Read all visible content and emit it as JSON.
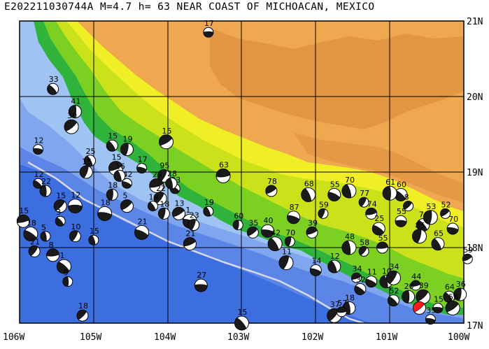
{
  "title": "E202211030744A M=4.7 h= 63 NEAR COAST OF MICHOACAN, MEXICO",
  "axes": {
    "lon_labels": [
      "106W",
      "105W",
      "104W",
      "103W",
      "102W",
      "101W",
      "100W"
    ],
    "lat_labels": [
      "21N",
      "20N",
      "19N",
      "18N",
      "17N"
    ]
  },
  "colors": {
    "ocean_deep": "#3d6ee0",
    "ocean_mid": "#5b86e8",
    "ocean_shelf": "#7fa6ee",
    "coast_shelf": "#9fc3f2",
    "lowland_green": "#2fb33a",
    "plain_green": "#7cd021",
    "yellowgreen": "#cbe21a",
    "yellow": "#f0ee24",
    "highland_orange": "#f0a850",
    "plateau_brown": "#dd9040",
    "trench_line": "#d9d9e6",
    "target_event": "#ff1a1a"
  },
  "target_event": {
    "depth_label": "63",
    "lon": 100.6,
    "lat": 17.2
  },
  "events": [
    {
      "lon": 103.45,
      "lat": 20.85,
      "d": "17"
    },
    {
      "lon": 105.55,
      "lat": 20.1,
      "d": "33"
    },
    {
      "lon": 105.25,
      "lat": 19.8,
      "d": "41"
    },
    {
      "lon": 105.3,
      "lat": 19.6,
      "d": "30"
    },
    {
      "lon": 105.75,
      "lat": 19.3,
      "d": "12"
    },
    {
      "lon": 104.75,
      "lat": 19.35,
      "d": "15"
    },
    {
      "lon": 104.55,
      "lat": 19.3,
      "d": "19"
    },
    {
      "lon": 104.02,
      "lat": 19.4,
      "d": "15"
    },
    {
      "lon": 104.35,
      "lat": 19.05,
      "d": "17"
    },
    {
      "lon": 105.05,
      "lat": 19.15,
      "d": "25"
    },
    {
      "lon": 105.1,
      "lat": 19.0,
      "d": "15"
    },
    {
      "lon": 104.7,
      "lat": 19.05,
      "d": "15"
    },
    {
      "lon": 104.55,
      "lat": 18.85,
      "d": "42"
    },
    {
      "lon": 104.65,
      "lat": 18.95,
      "d": "16"
    },
    {
      "lon": 104.05,
      "lat": 18.95,
      "d": "95"
    },
    {
      "lon": 104.15,
      "lat": 18.82,
      "d": "29"
    },
    {
      "lon": 103.9,
      "lat": 18.78,
      "d": "23"
    },
    {
      "lon": 103.95,
      "lat": 18.85,
      "d": "28"
    },
    {
      "lon": 104.1,
      "lat": 18.65,
      "d": "22"
    },
    {
      "lon": 103.25,
      "lat": 18.95,
      "d": "63"
    },
    {
      "lon": 105.75,
      "lat": 18.85,
      "d": "12"
    },
    {
      "lon": 105.65,
      "lat": 18.75,
      "d": "22"
    },
    {
      "lon": 105.45,
      "lat": 18.55,
      "d": "15"
    },
    {
      "lon": 105.25,
      "lat": 18.55,
      "d": "12"
    },
    {
      "lon": 105.45,
      "lat": 18.35,
      "d": "3"
    },
    {
      "lon": 104.75,
      "lat": 18.7,
      "d": "18"
    },
    {
      "lon": 104.55,
      "lat": 18.55,
      "d": "5"
    },
    {
      "lon": 104.85,
      "lat": 18.45,
      "d": "18"
    },
    {
      "lon": 104.2,
      "lat": 18.55,
      "d": "19"
    },
    {
      "lon": 104.05,
      "lat": 18.45,
      "d": "18"
    },
    {
      "lon": 103.85,
      "lat": 18.45,
      "d": "13"
    },
    {
      "lon": 103.7,
      "lat": 18.35,
      "d": "1"
    },
    {
      "lon": 103.45,
      "lat": 18.48,
      "d": "19"
    },
    {
      "lon": 103.65,
      "lat": 18.3,
      "d": "23"
    },
    {
      "lon": 103.7,
      "lat": 18.05,
      "d": "21"
    },
    {
      "lon": 104.35,
      "lat": 18.2,
      "d": "21"
    },
    {
      "lon": 105.0,
      "lat": 18.1,
      "d": "15"
    },
    {
      "lon": 105.25,
      "lat": 18.15,
      "d": "10"
    },
    {
      "lon": 105.95,
      "lat": 18.35,
      "d": "15"
    },
    {
      "lon": 105.85,
      "lat": 18.18,
      "d": "18"
    },
    {
      "lon": 105.65,
      "lat": 18.15,
      "d": "5"
    },
    {
      "lon": 105.8,
      "lat": 17.95,
      "d": "21"
    },
    {
      "lon": 105.55,
      "lat": 17.9,
      "d": "8"
    },
    {
      "lon": 105.4,
      "lat": 17.75,
      "d": "1"
    },
    {
      "lon": 105.35,
      "lat": 17.55,
      "d": "9"
    },
    {
      "lon": 105.15,
      "lat": 17.1,
      "d": "18"
    },
    {
      "lon": 103.55,
      "lat": 17.5,
      "d": "27"
    },
    {
      "lon": 103.0,
      "lat": 17.0,
      "d": "15"
    },
    {
      "lon": 103.05,
      "lat": 18.3,
      "d": "60"
    },
    {
      "lon": 102.85,
      "lat": 18.2,
      "d": "35"
    },
    {
      "lon": 102.65,
      "lat": 18.22,
      "d": "40"
    },
    {
      "lon": 102.55,
      "lat": 18.05,
      "d": "42"
    },
    {
      "lon": 102.35,
      "lat": 18.08,
      "d": "70"
    },
    {
      "lon": 102.6,
      "lat": 18.75,
      "d": "78"
    },
    {
      "lon": 102.3,
      "lat": 18.4,
      "d": "87"
    },
    {
      "lon": 102.1,
      "lat": 18.7,
      "d": "68"
    },
    {
      "lon": 101.9,
      "lat": 18.45,
      "d": "59"
    },
    {
      "lon": 102.05,
      "lat": 18.2,
      "d": "39"
    },
    {
      "lon": 101.75,
      "lat": 18.7,
      "d": "55"
    },
    {
      "lon": 101.55,
      "lat": 18.75,
      "d": "70"
    },
    {
      "lon": 101.35,
      "lat": 18.6,
      "d": "77"
    },
    {
      "lon": 101.25,
      "lat": 18.45,
      "d": "74"
    },
    {
      "lon": 101.15,
      "lat": 18.25,
      "d": "25"
    },
    {
      "lon": 101.55,
      "lat": 18.0,
      "d": "48"
    },
    {
      "lon": 101.35,
      "lat": 17.95,
      "d": "58"
    },
    {
      "lon": 101.1,
      "lat": 18.0,
      "d": "55"
    },
    {
      "lon": 100.85,
      "lat": 18.7,
      "d": "60"
    },
    {
      "lon": 101.0,
      "lat": 18.72,
      "d": "61"
    },
    {
      "lon": 100.75,
      "lat": 18.55,
      "d": "8"
    },
    {
      "lon": 100.85,
      "lat": 18.35,
      "d": "55"
    },
    {
      "lon": 100.55,
      "lat": 18.3,
      "d": "76"
    },
    {
      "lon": 100.45,
      "lat": 18.4,
      "d": "53"
    },
    {
      "lon": 100.25,
      "lat": 18.45,
      "d": "52"
    },
    {
      "lon": 100.15,
      "lat": 18.25,
      "d": "70"
    },
    {
      "lon": 100.35,
      "lat": 18.05,
      "d": "65"
    },
    {
      "lon": 100.6,
      "lat": 18.15,
      "d": "85"
    },
    {
      "lon": 99.95,
      "lat": 17.85,
      "d": "59"
    },
    {
      "lon": 102.0,
      "lat": 17.7,
      "d": "14"
    },
    {
      "lon": 101.75,
      "lat": 17.75,
      "d": "12"
    },
    {
      "lon": 102.4,
      "lat": 17.8,
      "d": "11"
    },
    {
      "lon": 101.45,
      "lat": 17.6,
      "d": "34"
    },
    {
      "lon": 101.25,
      "lat": 17.55,
      "d": "11"
    },
    {
      "lon": 101.05,
      "lat": 17.55,
      "d": "10"
    },
    {
      "lon": 100.95,
      "lat": 17.6,
      "d": "34"
    },
    {
      "lon": 100.65,
      "lat": 17.5,
      "d": "44"
    },
    {
      "lon": 101.4,
      "lat": 17.45,
      "d": "32"
    },
    {
      "lon": 101.55,
      "lat": 17.2,
      "d": "18"
    },
    {
      "lon": 101.75,
      "lat": 17.1,
      "d": "37"
    },
    {
      "lon": 101.65,
      "lat": 17.15,
      "d": "57"
    },
    {
      "lon": 100.95,
      "lat": 17.3,
      "d": "52"
    },
    {
      "lon": 100.75,
      "lat": 17.35,
      "d": "20"
    },
    {
      "lon": 100.55,
      "lat": 17.35,
      "d": "39"
    },
    {
      "lon": 100.35,
      "lat": 17.2,
      "d": "15"
    },
    {
      "lon": 100.2,
      "lat": 17.35,
      "d": "64"
    },
    {
      "lon": 100.05,
      "lat": 17.38,
      "d": "36"
    },
    {
      "lon": 100.15,
      "lat": 17.2,
      "d": "55"
    },
    {
      "lon": 100.45,
      "lat": 17.05,
      "d": "35"
    }
  ]
}
